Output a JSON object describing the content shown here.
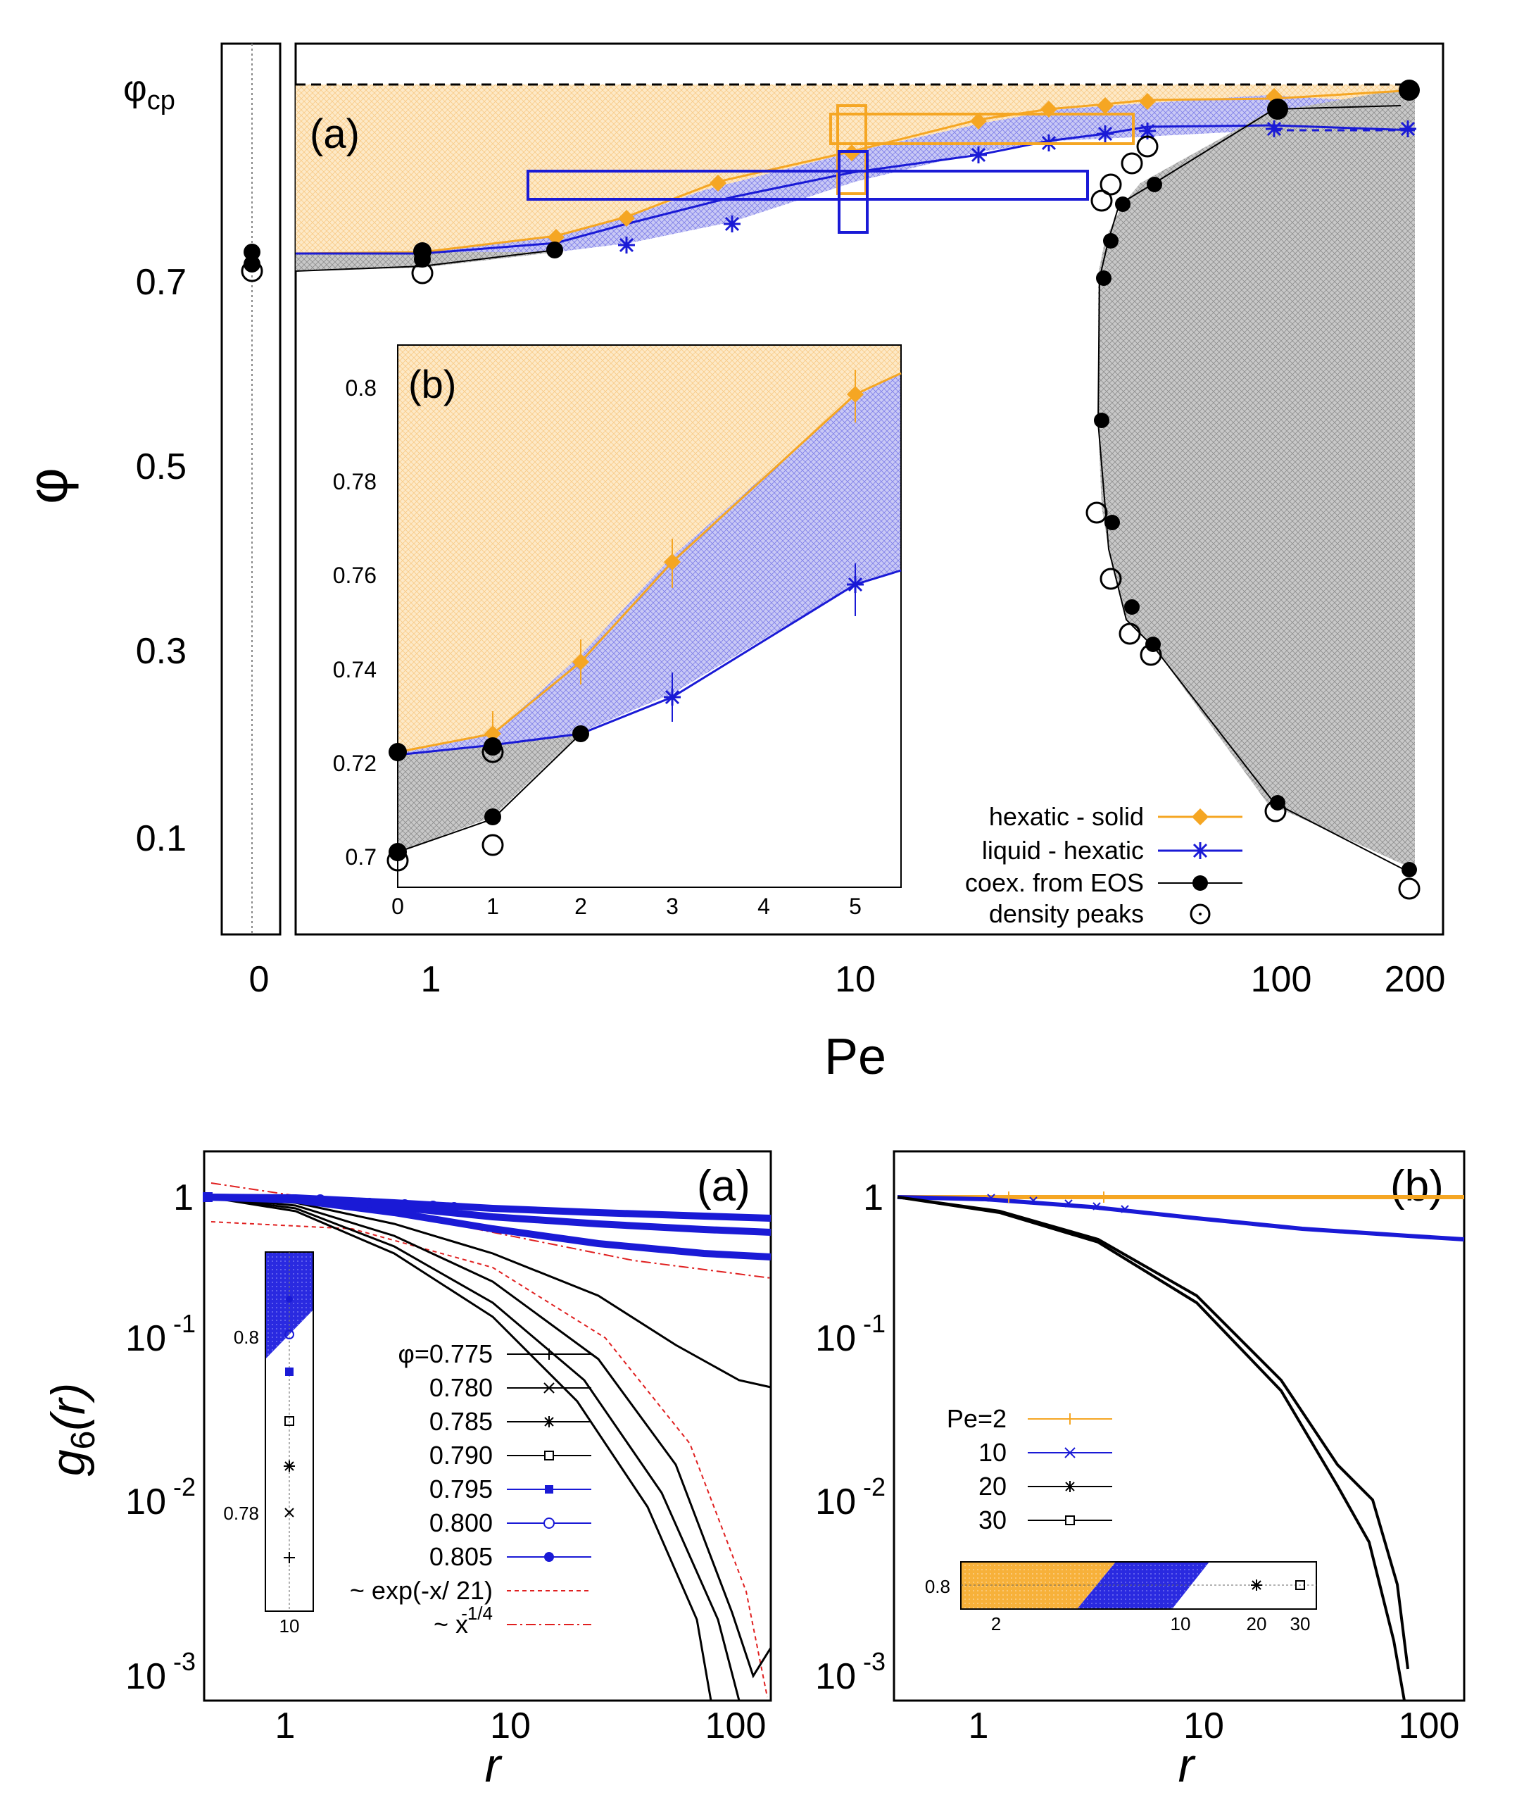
{
  "figure": {
    "top_panel": {
      "panel_label": "(a)",
      "xlabel": "Pe",
      "ylabel": "φ",
      "y_special_label": "φ",
      "y_special_sub": "cp",
      "y_ticks": [
        "0.7",
        "0.5",
        "0.3",
        "0.1"
      ],
      "x_ticks_left": [
        "0"
      ],
      "x_ticks": [
        "1",
        "10",
        "100",
        "200"
      ],
      "legend": [
        {
          "label": "hexatic - solid",
          "color": "#f5a623",
          "marker": "diamond"
        },
        {
          "label": "liquid - hexatic",
          "color": "#1a1ad6",
          "marker": "star"
        },
        {
          "label": "coex. from EOS",
          "color": "#000000",
          "marker": "filled-circle"
        },
        {
          "label": "density peaks",
          "color": "#000000",
          "marker": "dotted-circle"
        }
      ]
    },
    "inset_top": {
      "panel_label": "(b)",
      "y_ticks": [
        "0.8",
        "0.78",
        "0.76",
        "0.74",
        "0.72",
        "0.7"
      ],
      "x_ticks": [
        "0",
        "1",
        "2",
        "3",
        "4",
        "5"
      ]
    },
    "bottom_left": {
      "panel_label": "(a)",
      "xlabel": "r",
      "ylabel_main": "g",
      "ylabel_sub": "6",
      "ylabel_paren": "(r)",
      "y_ticks": [
        {
          "base": "1",
          "exp": ""
        },
        {
          "base": "10",
          "exp": "-1"
        },
        {
          "base": "10",
          "exp": "-2"
        },
        {
          "base": "10",
          "exp": "-3"
        }
      ],
      "x_ticks": [
        "1",
        "10",
        "100"
      ],
      "legend": [
        {
          "label": "φ=0.775",
          "marker": "+",
          "color": "#000000"
        },
        {
          "label": "0.780",
          "marker": "x",
          "color": "#000000"
        },
        {
          "label": "0.785",
          "marker": "*",
          "color": "#000000"
        },
        {
          "label": "0.790",
          "marker": "square-open",
          "color": "#000000"
        },
        {
          "label": "0.795",
          "marker": "square-filled",
          "color": "#1a1ad6"
        },
        {
          "label": "0.800",
          "marker": "circle-open",
          "color": "#1a1ad6"
        },
        {
          "label": "0.805",
          "marker": "circle-filled",
          "color": "#1a1ad6"
        },
        {
          "label": "~ exp(-x/ 21)",
          "marker": "dashed",
          "color": "#e02020"
        },
        {
          "label": "~ x",
          "label_exp": "-1/4",
          "marker": "dashdot",
          "color": "#e02020"
        }
      ],
      "inset": {
        "y_ticks": [
          "0.8",
          "0.78"
        ],
        "x_ticks": [
          "10"
        ]
      }
    },
    "bottom_right": {
      "panel_label": "(b)",
      "xlabel": "r",
      "y_ticks": [
        {
          "base": "1",
          "exp": ""
        },
        {
          "base": "10",
          "exp": "-1"
        },
        {
          "base": "10",
          "exp": "-2"
        },
        {
          "base": "10",
          "exp": "-3"
        }
      ],
      "x_ticks": [
        "1",
        "10",
        "100"
      ],
      "legend": [
        {
          "label": "Pe=2",
          "marker": "+",
          "color": "#f5a623"
        },
        {
          "label": "10",
          "marker": "x",
          "color": "#1a1ad6"
        },
        {
          "label": "20",
          "marker": "*",
          "color": "#000000"
        },
        {
          "label": "30",
          "marker": "square-open",
          "color": "#000000"
        }
      ],
      "inset": {
        "y_ticks": [
          "0.8"
        ],
        "x_ticks": [
          "2",
          "10",
          "20",
          "30"
        ]
      }
    }
  },
  "chart_data": [
    {
      "type": "line",
      "panel": "top (a)",
      "xlabel": "Pe",
      "ylabel": "φ",
      "x_scale": "log (with separate Pe=0 column)",
      "ylim": [
        0.0,
        0.907
      ],
      "series": [
        {
          "name": "hexatic - solid",
          "x": [
            0,
            0.8,
            2,
            3,
            5,
            10,
            20,
            30,
            40,
            50,
            100,
            200
          ],
          "y": [
            0.726,
            0.729,
            0.748,
            0.764,
            0.798,
            0.838,
            0.868,
            0.876,
            0.88,
            0.888,
            0.89,
            0.9
          ]
        },
        {
          "name": "liquid - hexatic",
          "x": [
            0,
            0.8,
            2,
            3,
            5,
            10,
            20,
            30,
            40,
            50,
            100,
            200
          ],
          "y": [
            0.725,
            0.728,
            0.73,
            0.736,
            0.76,
            0.8,
            0.826,
            0.845,
            0.85,
            0.85,
            0.855,
            0.855
          ]
        },
        {
          "name": "coex. from EOS",
          "x": [
            0,
            0,
            0.8,
            0.8,
            2,
            40,
            40,
            40,
            40,
            40,
            40,
            45,
            45,
            50,
            50,
            100,
            100,
            200,
            200
          ],
          "y": [
            0.708,
            0.724,
            0.715,
            0.729,
            0.73,
            0.7,
            0.74,
            0.78,
            0.8,
            0.55,
            0.4,
            0.35,
            0.32,
            0.3,
            0.81,
            0.14,
            0.87,
            0.07,
            0.9
          ]
        },
        {
          "name": "density peaks",
          "x": [
            0,
            0.8,
            38,
            40,
            42,
            45,
            48,
            50,
            100,
            200
          ],
          "y": [
            0.704,
            0.706,
            0.775,
            0.8,
            0.82,
            0.4,
            0.36,
            0.297,
            0.13,
            0.05
          ]
        }
      ]
    },
    {
      "type": "line",
      "panel": "top inset (b)",
      "xlim": [
        0,
        5.5
      ],
      "ylim": [
        0.7,
        0.81
      ],
      "series": [
        {
          "name": "hexatic - solid",
          "x": [
            0,
            1,
            2,
            3,
            5
          ],
          "y": [
            0.7255,
            0.7285,
            0.748,
            0.7635,
            0.798
          ]
        },
        {
          "name": "liquid - hexatic",
          "x": [
            0,
            1,
            2,
            3,
            5
          ],
          "y": [
            0.7245,
            0.7275,
            0.729,
            0.7365,
            0.76
          ]
        },
        {
          "name": "coex. from EOS",
          "x": [
            0,
            0,
            1,
            1,
            2
          ],
          "y": [
            0.7245,
            0.7075,
            0.7275,
            0.712,
            0.7295
          ]
        },
        {
          "name": "density peaks",
          "x": [
            0,
            1
          ],
          "y": [
            0.7065,
            0.709
          ]
        }
      ]
    },
    {
      "type": "line",
      "panel": "bottom (a)",
      "xlabel": "r",
      "ylabel": "g6(r)",
      "x_scale": "log",
      "y_scale": "log",
      "xlim": [
        0.5,
        120
      ],
      "ylim": [
        0.001,
        1.5
      ],
      "series": [
        {
          "name": "φ=0.775",
          "x": [
            0.5,
            1,
            2,
            5,
            10,
            20,
            40,
            70,
            100
          ],
          "y": [
            1,
            0.85,
            0.62,
            0.32,
            0.12,
            0.03,
            0.006,
            0.0015,
            0.001
          ]
        },
        {
          "name": "0.780",
          "x": [
            0.5,
            1,
            2,
            5,
            10,
            20,
            40,
            70,
            100
          ],
          "y": [
            1,
            0.86,
            0.65,
            0.36,
            0.16,
            0.04,
            0.008,
            0.002,
            0.001
          ]
        },
        {
          "name": "0.785",
          "x": [
            0.5,
            1,
            2,
            5,
            10,
            20,
            40,
            80,
            100
          ],
          "y": [
            1,
            0.88,
            0.7,
            0.44,
            0.24,
            0.08,
            0.02,
            0.002,
            0.004
          ]
        },
        {
          "name": "0.790",
          "x": [
            0.5,
            1,
            2,
            5,
            10,
            20,
            40,
            80,
            100
          ],
          "y": [
            1,
            0.9,
            0.76,
            0.55,
            0.38,
            0.22,
            0.11,
            0.06,
            0.05
          ]
        },
        {
          "name": "0.795",
          "x": [
            0.5,
            1,
            2,
            5,
            10,
            20,
            50,
            100,
            120
          ],
          "y": [
            1,
            0.93,
            0.83,
            0.69,
            0.58,
            0.5,
            0.42,
            0.37,
            0.36
          ]
        },
        {
          "name": "0.800",
          "x": [
            0.5,
            1,
            2,
            5,
            10,
            20,
            50,
            100,
            120
          ],
          "y": [
            1,
            0.95,
            0.88,
            0.79,
            0.72,
            0.67,
            0.6,
            0.55,
            0.53
          ]
        },
        {
          "name": "0.805",
          "x": [
            0.5,
            1,
            2,
            5,
            10,
            20,
            50,
            100,
            120
          ],
          "y": [
            1,
            0.97,
            0.93,
            0.87,
            0.82,
            0.79,
            0.75,
            0.72,
            0.71
          ]
        }
      ]
    },
    {
      "type": "line",
      "panel": "bottom (b)",
      "xlabel": "r",
      "x_scale": "log",
      "y_scale": "log",
      "xlim": [
        0.5,
        120
      ],
      "ylim": [
        0.001,
        1.5
      ],
      "series": [
        {
          "name": "Pe=2",
          "x": [
            0.5,
            1,
            10,
            100,
            120
          ],
          "y": [
            1,
            1,
            1,
            1,
            1
          ]
        },
        {
          "name": "10",
          "x": [
            0.5,
            1,
            2,
            5,
            10,
            20,
            50,
            100,
            120
          ],
          "y": [
            1,
            0.97,
            0.92,
            0.85,
            0.8,
            0.75,
            0.67,
            0.61,
            0.6
          ]
        },
        {
          "name": "20",
          "x": [
            0.5,
            1,
            2,
            5,
            10,
            20,
            30,
            40,
            60
          ],
          "y": [
            1,
            0.88,
            0.72,
            0.48,
            0.28,
            0.09,
            0.035,
            0.018,
            0.0025
          ]
        },
        {
          "name": "30",
          "x": [
            0.5,
            1,
            2,
            5,
            10,
            20,
            30,
            40,
            60
          ],
          "y": [
            1,
            0.87,
            0.7,
            0.46,
            0.26,
            0.08,
            0.03,
            0.012,
            0.001
          ]
        }
      ]
    }
  ]
}
